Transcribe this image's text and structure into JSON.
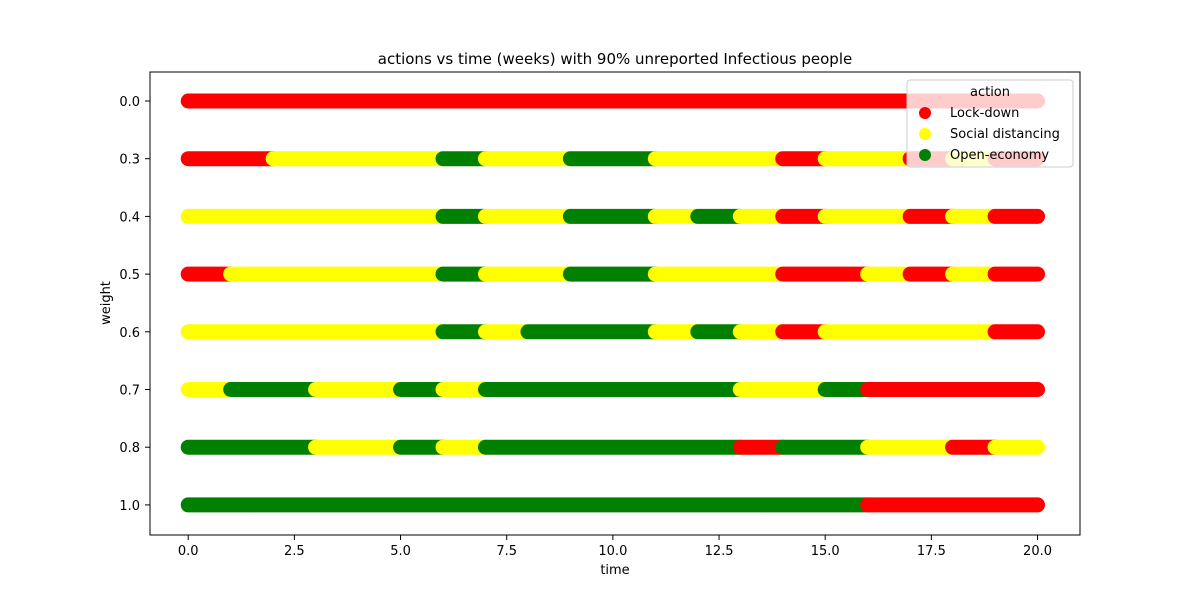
{
  "chart_data": {
    "type": "scatter",
    "title": "actions vs time (weeks) with 90% unreported Infectious people",
    "xlabel": "time",
    "ylabel": "weight",
    "xlim": [
      -0.9,
      21.0
    ],
    "x_ticks": [
      0.0,
      2.5,
      5.0,
      7.5,
      10.0,
      12.5,
      15.0,
      17.5,
      20.0
    ],
    "x_tick_labels": [
      "0.0",
      "2.5",
      "5.0",
      "7.5",
      "10.0",
      "12.5",
      "15.0",
      "17.5",
      "20.0"
    ],
    "categories": [
      "0.0",
      "0.3",
      "0.4",
      "0.5",
      "0.6",
      "0.7",
      "0.8",
      "1.0"
    ],
    "legend": {
      "title": "action",
      "placement": "top-right",
      "entries": [
        {
          "name": "Lock-down",
          "color": "#ff0000"
        },
        {
          "name": "Social distancing",
          "color": "#ffff00"
        },
        {
          "name": "Open-economy",
          "color": "#008000"
        }
      ]
    },
    "series": [
      {
        "name": "Lock-down",
        "color": "#ff0000"
      },
      {
        "name": "Social distancing",
        "color": "#ffff00"
      },
      {
        "name": "Open-economy",
        "color": "#008000"
      }
    ],
    "rows": [
      {
        "weight": "0.0",
        "segments": [
          {
            "start": 0,
            "end": 20,
            "action": "Lock-down"
          }
        ]
      },
      {
        "weight": "0.3",
        "segments": [
          {
            "start": 0,
            "end": 2,
            "action": "Lock-down"
          },
          {
            "start": 2,
            "end": 6,
            "action": "Social distancing"
          },
          {
            "start": 6,
            "end": 7,
            "action": "Open-economy"
          },
          {
            "start": 7,
            "end": 9,
            "action": "Social distancing"
          },
          {
            "start": 9,
            "end": 11,
            "action": "Open-economy"
          },
          {
            "start": 11,
            "end": 14,
            "action": "Social distancing"
          },
          {
            "start": 14,
            "end": 15,
            "action": "Lock-down"
          },
          {
            "start": 15,
            "end": 17,
            "action": "Social distancing"
          },
          {
            "start": 17,
            "end": 18,
            "action": "Lock-down"
          },
          {
            "start": 18,
            "end": 19,
            "action": "Social distancing"
          },
          {
            "start": 19,
            "end": 20,
            "action": "Lock-down"
          }
        ]
      },
      {
        "weight": "0.4",
        "segments": [
          {
            "start": 0,
            "end": 6,
            "action": "Social distancing"
          },
          {
            "start": 6,
            "end": 7,
            "action": "Open-economy"
          },
          {
            "start": 7,
            "end": 9,
            "action": "Social distancing"
          },
          {
            "start": 9,
            "end": 11,
            "action": "Open-economy"
          },
          {
            "start": 11,
            "end": 12,
            "action": "Social distancing"
          },
          {
            "start": 12,
            "end": 13,
            "action": "Open-economy"
          },
          {
            "start": 13,
            "end": 14,
            "action": "Social distancing"
          },
          {
            "start": 14,
            "end": 15,
            "action": "Lock-down"
          },
          {
            "start": 15,
            "end": 17,
            "action": "Social distancing"
          },
          {
            "start": 17,
            "end": 18,
            "action": "Lock-down"
          },
          {
            "start": 18,
            "end": 19,
            "action": "Social distancing"
          },
          {
            "start": 19,
            "end": 20,
            "action": "Lock-down"
          }
        ]
      },
      {
        "weight": "0.5",
        "segments": [
          {
            "start": 0,
            "end": 1,
            "action": "Lock-down"
          },
          {
            "start": 1,
            "end": 6,
            "action": "Social distancing"
          },
          {
            "start": 6,
            "end": 7,
            "action": "Open-economy"
          },
          {
            "start": 7,
            "end": 9,
            "action": "Social distancing"
          },
          {
            "start": 9,
            "end": 11,
            "action": "Open-economy"
          },
          {
            "start": 11,
            "end": 14,
            "action": "Social distancing"
          },
          {
            "start": 14,
            "end": 16,
            "action": "Lock-down"
          },
          {
            "start": 16,
            "end": 17,
            "action": "Social distancing"
          },
          {
            "start": 17,
            "end": 18,
            "action": "Lock-down"
          },
          {
            "start": 18,
            "end": 19,
            "action": "Social distancing"
          },
          {
            "start": 19,
            "end": 20,
            "action": "Lock-down"
          }
        ]
      },
      {
        "weight": "0.6",
        "segments": [
          {
            "start": 0,
            "end": 6,
            "action": "Social distancing"
          },
          {
            "start": 6,
            "end": 7,
            "action": "Open-economy"
          },
          {
            "start": 7,
            "end": 8,
            "action": "Social distancing"
          },
          {
            "start": 8,
            "end": 11,
            "action": "Open-economy"
          },
          {
            "start": 11,
            "end": 12,
            "action": "Social distancing"
          },
          {
            "start": 12,
            "end": 13,
            "action": "Open-economy"
          },
          {
            "start": 13,
            "end": 14,
            "action": "Social distancing"
          },
          {
            "start": 14,
            "end": 15,
            "action": "Lock-down"
          },
          {
            "start": 15,
            "end": 19,
            "action": "Social distancing"
          },
          {
            "start": 19,
            "end": 20,
            "action": "Lock-down"
          }
        ]
      },
      {
        "weight": "0.7",
        "segments": [
          {
            "start": 0,
            "end": 1,
            "action": "Social distancing"
          },
          {
            "start": 1,
            "end": 3,
            "action": "Open-economy"
          },
          {
            "start": 3,
            "end": 5,
            "action": "Social distancing"
          },
          {
            "start": 5,
            "end": 6,
            "action": "Open-economy"
          },
          {
            "start": 6,
            "end": 7,
            "action": "Social distancing"
          },
          {
            "start": 7,
            "end": 13,
            "action": "Open-economy"
          },
          {
            "start": 13,
            "end": 15,
            "action": "Social distancing"
          },
          {
            "start": 15,
            "end": 16,
            "action": "Open-economy"
          },
          {
            "start": 16,
            "end": 20,
            "action": "Lock-down"
          }
        ]
      },
      {
        "weight": "0.8",
        "segments": [
          {
            "start": 0,
            "end": 3,
            "action": "Open-economy"
          },
          {
            "start": 3,
            "end": 5,
            "action": "Social distancing"
          },
          {
            "start": 5,
            "end": 6,
            "action": "Open-economy"
          },
          {
            "start": 6,
            "end": 7,
            "action": "Social distancing"
          },
          {
            "start": 7,
            "end": 13,
            "action": "Open-economy"
          },
          {
            "start": 13,
            "end": 14,
            "action": "Lock-down"
          },
          {
            "start": 14,
            "end": 16,
            "action": "Open-economy"
          },
          {
            "start": 16,
            "end": 18,
            "action": "Social distancing"
          },
          {
            "start": 18,
            "end": 19,
            "action": "Lock-down"
          },
          {
            "start": 19,
            "end": 20,
            "action": "Social distancing"
          }
        ]
      },
      {
        "weight": "1.0",
        "segments": [
          {
            "start": 0,
            "end": 16,
            "action": "Open-economy"
          },
          {
            "start": 16,
            "end": 20,
            "action": "Lock-down"
          }
        ]
      }
    ]
  }
}
